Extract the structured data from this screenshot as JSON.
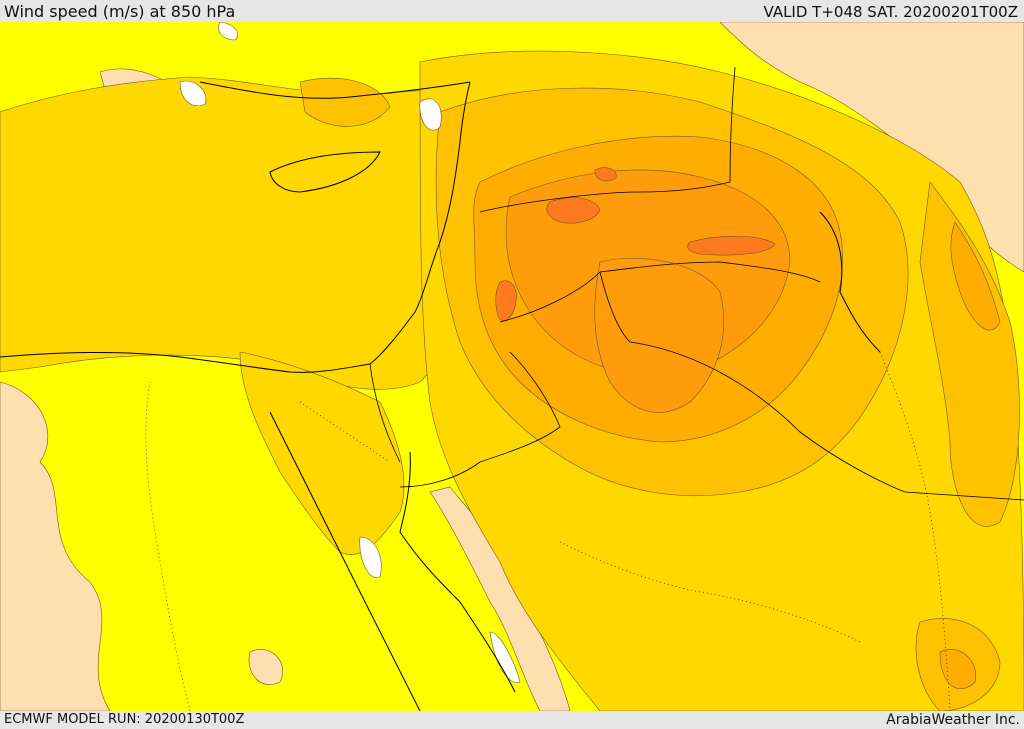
{
  "header": {
    "title": "Wind speed (m/s) at 850 hPa",
    "valid_time": "VALID T+048 SAT. 20200201T00Z"
  },
  "footer": {
    "model_run": "ECMWF MODEL RUN: 20200130T00Z",
    "credit": "ArabiaWeather Inc."
  },
  "colors": {
    "level_0": "#ffdfb0",
    "level_1": "#ffff00",
    "level_2": "#ffd800",
    "level_3": "#ffc200",
    "level_4": "#ffad00",
    "level_5": "#ff9c0c",
    "level_6": "#ff7a1e",
    "no_data": "#ffffff",
    "contour": "#6b5a2a",
    "coastline": "#000000"
  }
}
